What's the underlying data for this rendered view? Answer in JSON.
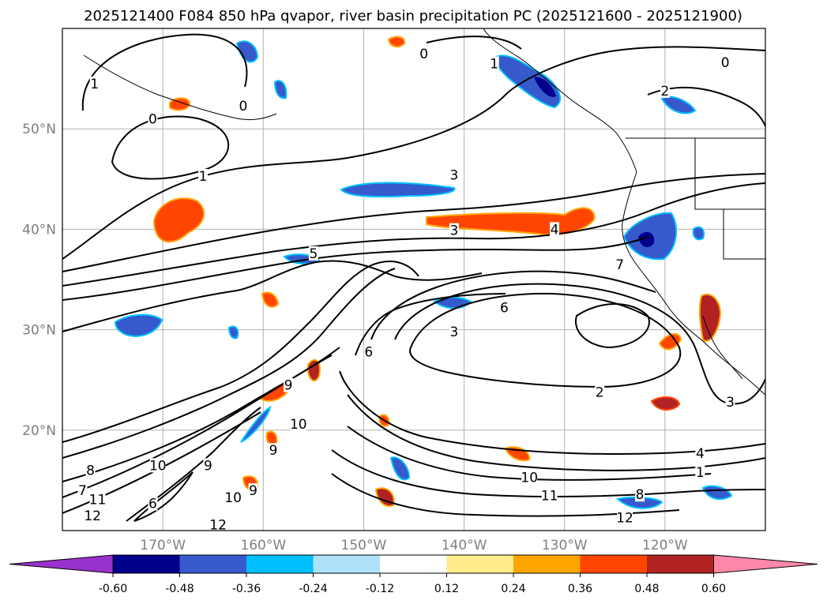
{
  "title": "2025121400 F084 850 hPa qvapor, river basin precipitation PC (2025121600 - 2025121900)",
  "map": {
    "lon_range": [
      -180,
      -110
    ],
    "lat_range": [
      10,
      60
    ],
    "lat_ticks": [
      {
        "lat": 50,
        "label": "50°N"
      },
      {
        "lat": 40,
        "label": "40°N"
      },
      {
        "lat": 30,
        "label": "30°N"
      },
      {
        "lat": 20,
        "label": "20°N"
      }
    ],
    "lon_ticks": [
      {
        "lon": -170,
        "label": "170°W"
      },
      {
        "lon": -160,
        "label": "160°W"
      },
      {
        "lon": -150,
        "label": "150°W"
      },
      {
        "lon": -140,
        "label": "140°W"
      },
      {
        "lon": -130,
        "label": "130°W"
      },
      {
        "lon": -120,
        "label": "120°W"
      }
    ],
    "contour_labels": [
      {
        "text": "0",
        "lon": -144,
        "lat": 57.5
      },
      {
        "text": "1",
        "lon": -137,
        "lat": 56.5
      },
      {
        "text": "0",
        "lon": -114,
        "lat": 56.6
      },
      {
        "text": "1",
        "lon": -176.8,
        "lat": 54.5
      },
      {
        "text": "0",
        "lon": -171,
        "lat": 51
      },
      {
        "text": "0",
        "lon": -162,
        "lat": 52.3
      },
      {
        "text": "2",
        "lon": -120,
        "lat": 53.8
      },
      {
        "text": "1",
        "lon": -166,
        "lat": 45.3
      },
      {
        "text": "3",
        "lon": -141,
        "lat": 45.4
      },
      {
        "text": "3",
        "lon": -141,
        "lat": 39.9
      },
      {
        "text": "4",
        "lon": -131,
        "lat": 40
      },
      {
        "text": "5",
        "lon": -155,
        "lat": 37.6
      },
      {
        "text": "7",
        "lon": -124.5,
        "lat": 36.5
      },
      {
        "text": "6",
        "lon": -149.5,
        "lat": 27.8
      },
      {
        "text": "6",
        "lon": -136,
        "lat": 32.2
      },
      {
        "text": "3",
        "lon": -141,
        "lat": 29.8
      },
      {
        "text": "9",
        "lon": -157.5,
        "lat": 24.5
      },
      {
        "text": "10",
        "lon": -156.5,
        "lat": 20.6
      },
      {
        "text": "2",
        "lon": -126.5,
        "lat": 23.8
      },
      {
        "text": "3",
        "lon": -113.5,
        "lat": 22.8
      },
      {
        "text": "9",
        "lon": -159,
        "lat": 18
      },
      {
        "text": "10",
        "lon": -170.5,
        "lat": 16.5
      },
      {
        "text": "9",
        "lon": -165.5,
        "lat": 16.5
      },
      {
        "text": "8",
        "lon": -177.2,
        "lat": 16
      },
      {
        "text": "7",
        "lon": -178,
        "lat": 14
      },
      {
        "text": "11",
        "lon": -176.5,
        "lat": 13.1
      },
      {
        "text": "12",
        "lon": -177,
        "lat": 11.5
      },
      {
        "text": "6",
        "lon": -171,
        "lat": 12.7
      },
      {
        "text": "12",
        "lon": -164.5,
        "lat": 10.6
      },
      {
        "text": "10",
        "lon": -163,
        "lat": 13.3
      },
      {
        "text": "9",
        "lon": -161,
        "lat": 14
      },
      {
        "text": "10",
        "lon": -133.5,
        "lat": 15.3
      },
      {
        "text": "11",
        "lon": -131.5,
        "lat": 13.5
      },
      {
        "text": "8",
        "lon": -122.5,
        "lat": 13.6
      },
      {
        "text": "12",
        "lon": -124,
        "lat": 11.3
      },
      {
        "text": "4",
        "lon": -116.5,
        "lat": 17.7
      },
      {
        "text": "1",
        "lon": -116.5,
        "lat": 15.8
      }
    ]
  },
  "colorbar": {
    "labels": [
      "-0.60",
      "-0.48",
      "-0.36",
      "-0.24",
      "-0.12",
      "0.12",
      "0.24",
      "0.36",
      "0.48",
      "0.60"
    ],
    "colors": [
      "#9932cc",
      "#00008b",
      "#3659cc",
      "#00bfff",
      "#aee2fa",
      "#ffffff",
      "#ffeb8b",
      "#ffa500",
      "#ff4500",
      "#b22222",
      "#ff88aa"
    ]
  }
}
